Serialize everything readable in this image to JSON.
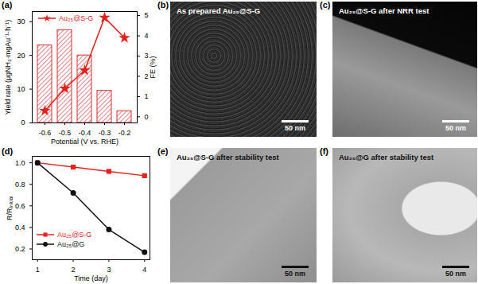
{
  "chart_data": [
    {
      "panel": "(a)",
      "type": "bar",
      "x_label": "Potential (V vs. RHE)",
      "y_label": "Yield rate (μgNH₃·mgAu⁻¹·h⁻¹)",
      "y2_label": "FE (%)",
      "categories": [
        "-0.6",
        "-0.5",
        "-0.4",
        "-0.3",
        "-0.2"
      ],
      "values": [
        23,
        27.5,
        20,
        9.5,
        3.5
      ],
      "color": "#d62f2f",
      "series": [
        {
          "name": "Au₂₅@S-G",
          "type": "line",
          "axis": "y2",
          "color": "#e0201b",
          "marker": "star",
          "values": [
            0.3,
            1.4,
            2.3,
            4.9,
            3.9
          ]
        }
      ],
      "ylim": [
        0,
        33
      ],
      "yticks": [
        0,
        10,
        20,
        30
      ],
      "y2lim": [
        -0.3,
        5.2
      ],
      "y2ticks": [
        0,
        1,
        2,
        3,
        4,
        5
      ],
      "legend": "top-left"
    },
    {
      "panel": "(d)",
      "type": "line",
      "x_label": "Time (day)",
      "y_label": "R/Rᵢₙᵢₜᵢₐₗ",
      "x": [
        1,
        2,
        3,
        4
      ],
      "series": [
        {
          "name": "Au₂₅@S-G",
          "color": "#e8201e",
          "marker": "square",
          "values": [
            1.0,
            0.96,
            0.92,
            0.88
          ]
        },
        {
          "name": "Au₂₅@G",
          "color": "#111111",
          "marker": "circle",
          "values": [
            1.0,
            0.72,
            0.38,
            0.17
          ]
        }
      ],
      "xlim": [
        0.85,
        4.15
      ],
      "xticks": [
        1,
        2,
        3,
        4
      ],
      "ylim": [
        0.1,
        1.06
      ],
      "yticks": [
        0.2,
        0.4,
        0.6,
        0.8,
        {
          "value": 1,
          "label": "1.0"
        }
      ],
      "legend": "bottom-left"
    }
  ],
  "images": [
    {
      "panel": "(b)",
      "caption": "As prepared Au₂₅@S-G",
      "scale_bar": "50 nm"
    },
    {
      "panel": "(c)",
      "caption": "Au₂₅@S-G after NRR test",
      "scale_bar": "50 nm"
    },
    {
      "panel": "(e)",
      "caption": "Au₂₅@S-G after stability test",
      "scale_bar": "50 nm"
    },
    {
      "panel": "(f)",
      "caption": "Au₂₅@G after stability test",
      "scale_bar": "50 nm"
    }
  ]
}
